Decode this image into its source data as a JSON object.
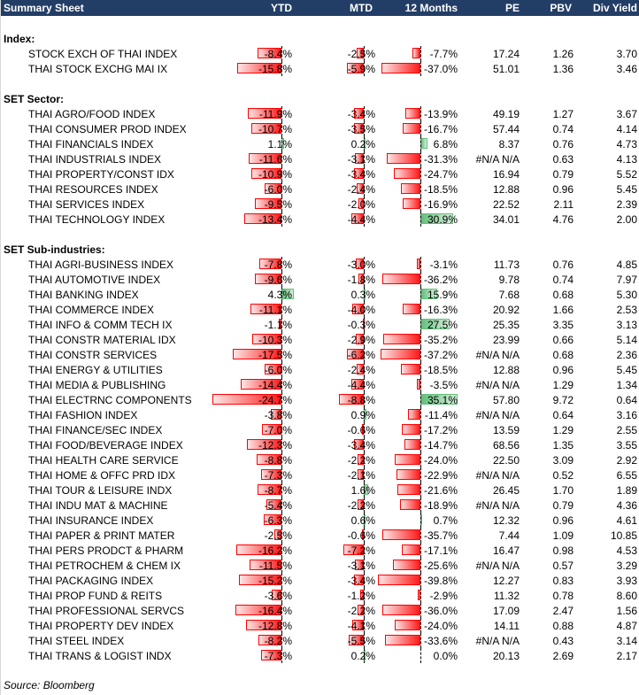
{
  "header": {
    "title": "Summary Sheet",
    "ytd": "YTD",
    "mtd": "MTD",
    "m12": "12 Months",
    "pe": "PE",
    "pbv": "PBV",
    "dy": "Div Yield"
  },
  "colors": {
    "header_bg": "#233e66",
    "negative": "#ff0000",
    "positive": "#63be7b"
  },
  "sections": [
    {
      "title": "Index:",
      "rows": [
        {
          "name": "STOCK EXCH OF THAI INDEX",
          "ytd": -8.4,
          "mtd": -2.5,
          "m12": -7.7,
          "pe": "17.24",
          "pbv": "1.26",
          "dy": "3.70"
        },
        {
          "name": "THAI STOCK EXCHG MAI IX",
          "ytd": -15.8,
          "mtd": -5.9,
          "m12": -37.0,
          "pe": "51.01",
          "pbv": "1.36",
          "dy": "3.46"
        }
      ]
    },
    {
      "title": "SET Sector:",
      "rows": [
        {
          "name": "THAI AGRO/FOOD INDEX",
          "ytd": -11.9,
          "mtd": -3.4,
          "m12": -13.9,
          "pe": "49.19",
          "pbv": "1.27",
          "dy": "3.67"
        },
        {
          "name": "THAI CONSUMER PROD INDEX",
          "ytd": -10.7,
          "mtd": -3.5,
          "m12": -16.7,
          "pe": "57.44",
          "pbv": "0.74",
          "dy": "4.14"
        },
        {
          "name": "THAI FINANCIALS INDEX",
          "ytd": 1.1,
          "mtd": 0.2,
          "m12": 6.8,
          "pe": "8.37",
          "pbv": "0.76",
          "dy": "4.73"
        },
        {
          "name": "THAI INDUSTRIALS INDEX",
          "ytd": -11.6,
          "mtd": -3.1,
          "m12": -31.3,
          "pe": "#N/A N/A",
          "pbv": "0.63",
          "dy": "4.13"
        },
        {
          "name": "THAI PROPERTY/CONST IDX",
          "ytd": -10.9,
          "mtd": -3.4,
          "m12": -24.7,
          "pe": "16.94",
          "pbv": "0.79",
          "dy": "5.52"
        },
        {
          "name": "THAI RESOURCES INDEX",
          "ytd": -6.0,
          "mtd": -2.4,
          "m12": -18.5,
          "pe": "12.88",
          "pbv": "0.96",
          "dy": "5.45"
        },
        {
          "name": "THAI SERVICES INDEX",
          "ytd": -9.5,
          "mtd": -2.0,
          "m12": -16.9,
          "pe": "22.52",
          "pbv": "2.11",
          "dy": "2.39"
        },
        {
          "name": "THAI TECHNOLOGY INDEX",
          "ytd": -13.4,
          "mtd": -4.4,
          "m12": 30.9,
          "pe": "34.01",
          "pbv": "4.76",
          "dy": "2.00"
        }
      ]
    },
    {
      "title": "SET Sub-industries:",
      "rows": [
        {
          "name": "THAI AGRI-BUSINESS INDEX",
          "ytd": -7.8,
          "mtd": -3.0,
          "m12": -3.1,
          "pe": "11.73",
          "pbv": "0.76",
          "dy": "4.85"
        },
        {
          "name": "THAI AUTOMOTIVE INDEX",
          "ytd": -9.6,
          "mtd": -1.8,
          "m12": -36.2,
          "pe": "9.78",
          "pbv": "0.74",
          "dy": "7.97"
        },
        {
          "name": "THAI BANKING INDEX",
          "ytd": 4.3,
          "mtd": 0.3,
          "m12": 15.9,
          "pe": "7.68",
          "pbv": "0.68",
          "dy": "5.30"
        },
        {
          "name": "THAI COMMERCE INDEX",
          "ytd": -11.1,
          "mtd": -4.0,
          "m12": -16.3,
          "pe": "20.92",
          "pbv": "1.66",
          "dy": "2.53"
        },
        {
          "name": "THAI INFO & COMM TECH IX",
          "ytd": -1.1,
          "mtd": -0.3,
          "m12": 27.5,
          "pe": "25.35",
          "pbv": "3.35",
          "dy": "3.13"
        },
        {
          "name": "THAI CONSTR MATERIAL IDX",
          "ytd": -10.3,
          "mtd": -2.9,
          "m12": -35.2,
          "pe": "23.99",
          "pbv": "0.66",
          "dy": "5.14"
        },
        {
          "name": "THAI CONSTR SERVICES",
          "ytd": -17.5,
          "mtd": -6.2,
          "m12": -37.2,
          "pe": "#N/A N/A",
          "pbv": "0.68",
          "dy": "2.36"
        },
        {
          "name": "THAI ENERGY & UTILITIES",
          "ytd": -6.0,
          "mtd": -2.4,
          "m12": -18.5,
          "pe": "12.88",
          "pbv": "0.96",
          "dy": "5.45"
        },
        {
          "name": "THAI MEDIA & PUBLISHING",
          "ytd": -14.4,
          "mtd": -4.4,
          "m12": -3.5,
          "pe": "#N/A N/A",
          "pbv": "1.29",
          "dy": "1.34"
        },
        {
          "name": "THAI ELECTRNC COMPONENTS",
          "ytd": -24.7,
          "mtd": -8.8,
          "m12": 35.1,
          "pe": "57.80",
          "pbv": "9.72",
          "dy": "0.64"
        },
        {
          "name": "THAI FASHION INDEX",
          "ytd": -3.8,
          "mtd": 0.9,
          "m12": -11.4,
          "pe": "#N/A N/A",
          "pbv": "0.64",
          "dy": "3.16"
        },
        {
          "name": "THAI FINANCE/SEC INDEX",
          "ytd": -7.0,
          "mtd": -0.6,
          "m12": -17.2,
          "pe": "13.59",
          "pbv": "1.29",
          "dy": "2.55"
        },
        {
          "name": "THAI FOOD/BEVERAGE INDEX",
          "ytd": -12.3,
          "mtd": -3.4,
          "m12": -14.7,
          "pe": "68.56",
          "pbv": "1.35",
          "dy": "3.55"
        },
        {
          "name": "THAI HEALTH CARE SERVICE",
          "ytd": -8.8,
          "mtd": -2.2,
          "m12": -24.0,
          "pe": "22.50",
          "pbv": "3.09",
          "dy": "2.92"
        },
        {
          "name": "THAI HOME & OFFC PRD IDX",
          "ytd": -7.3,
          "mtd": -2.1,
          "m12": -22.9,
          "pe": "#N/A N/A",
          "pbv": "0.52",
          "dy": "6.55"
        },
        {
          "name": "THAI TOUR & LEISURE INDX",
          "ytd": -8.7,
          "mtd": 1.6,
          "m12": -21.6,
          "pe": "26.45",
          "pbv": "1.70",
          "dy": "1.89"
        },
        {
          "name": "THAI INDU MAT & MACHINE",
          "ytd": -5.4,
          "mtd": -2.2,
          "m12": -18.9,
          "pe": "#N/A N/A",
          "pbv": "0.79",
          "dy": "4.36"
        },
        {
          "name": "THAI INSURANCE INDEX",
          "ytd": -6.3,
          "mtd": 0.6,
          "m12": 0.7,
          "pe": "12.32",
          "pbv": "0.96",
          "dy": "4.61"
        },
        {
          "name": "THAI PAPER & PRINT MATER",
          "ytd": -2.5,
          "mtd": -0.6,
          "m12": -35.7,
          "pe": "7.44",
          "pbv": "1.09",
          "dy": "10.85"
        },
        {
          "name": "THAI PERS PRODCT & PHARM",
          "ytd": -16.2,
          "mtd": -7.2,
          "m12": -17.1,
          "pe": "16.47",
          "pbv": "0.98",
          "dy": "4.53"
        },
        {
          "name": "THAI PETROCHEM & CHEM IX",
          "ytd": -11.5,
          "mtd": -3.1,
          "m12": -25.6,
          "pe": "#N/A N/A",
          "pbv": "0.57",
          "dy": "3.29"
        },
        {
          "name": "THAI PACKAGING INDEX",
          "ytd": -15.2,
          "mtd": -3.4,
          "m12": -39.8,
          "pe": "12.27",
          "pbv": "0.83",
          "dy": "3.93"
        },
        {
          "name": "THAI PROP FUND & REITS",
          "ytd": -3.6,
          "mtd": -1.2,
          "m12": -2.9,
          "pe": "11.32",
          "pbv": "0.78",
          "dy": "8.60"
        },
        {
          "name": "THAI PROFESSIONAL SERVCS",
          "ytd": -16.4,
          "mtd": -2.2,
          "m12": -36.0,
          "pe": "17.09",
          "pbv": "2.47",
          "dy": "1.56"
        },
        {
          "name": "THAI PROPERTY DEV INDEX",
          "ytd": -12.8,
          "mtd": -4.1,
          "m12": -24.0,
          "pe": "14.11",
          "pbv": "0.88",
          "dy": "4.87"
        },
        {
          "name": "THAI STEEL INDEX",
          "ytd": -8.2,
          "mtd": -5.5,
          "m12": -33.6,
          "pe": "#N/A N/A",
          "pbv": "0.43",
          "dy": "3.14"
        },
        {
          "name": "THAI TRANS & LOGIST INDX",
          "ytd": -7.3,
          "mtd": 0.2,
          "m12": 0.0,
          "pe": "20.13",
          "pbv": "2.69",
          "dy": "2.17"
        }
      ]
    }
  ],
  "source": "Source: Bloomberg"
}
